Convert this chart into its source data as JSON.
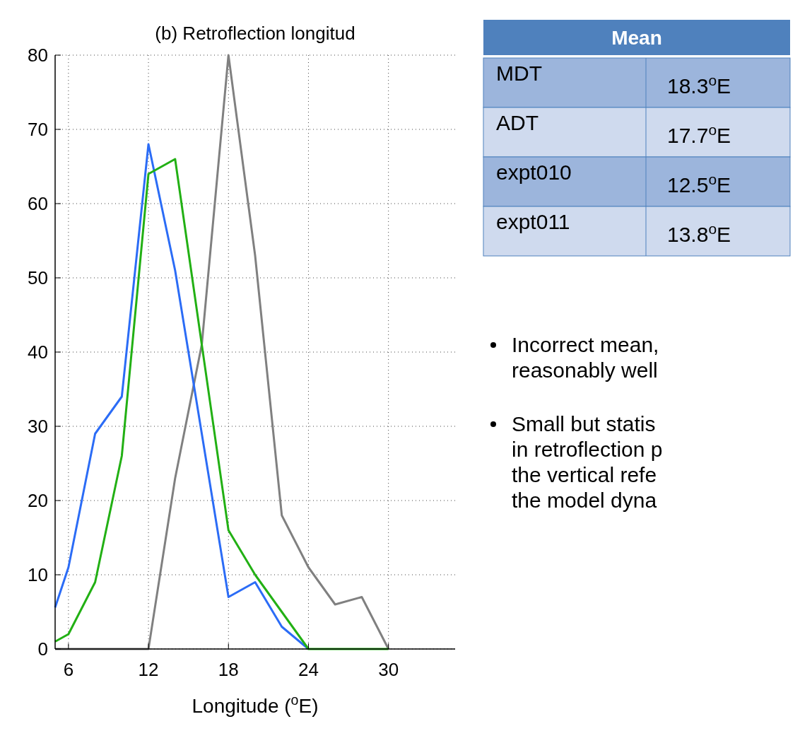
{
  "chart_data": {
    "type": "line",
    "title": "(b) Retroflection longitud",
    "xlabel": "Longitude ($^{o}$E)",
    "xlim": [
      5,
      35
    ],
    "xticks": [
      6,
      12,
      18,
      24,
      30
    ],
    "ylim": [
      0,
      80
    ],
    "yticks": [
      0,
      10,
      20,
      30,
      40,
      50,
      60,
      70,
      80
    ],
    "grid": true,
    "series": [
      {
        "color": "#808080",
        "x": [
          5,
          12,
          14,
          16,
          18,
          20,
          22,
          24,
          26,
          28,
          30
        ],
        "values": [
          0,
          0,
          23,
          41,
          80,
          53,
          18,
          11,
          6,
          7,
          0
        ]
      },
      {
        "color": "#2b6cf6",
        "x": [
          5,
          6,
          8,
          10,
          12,
          14,
          18,
          20,
          22,
          24
        ],
        "values": [
          5.6,
          11,
          29,
          34,
          68,
          51,
          7,
          9,
          3,
          0
        ]
      },
      {
        "color": "#22b014",
        "x": [
          5,
          6,
          8,
          10,
          12,
          14,
          18,
          20,
          24,
          30
        ],
        "values": [
          1,
          2,
          9,
          26,
          64,
          66,
          16,
          10,
          0,
          0
        ]
      }
    ],
    "annotations": [
      "Mean",
      "MDT",
      "18.3$^{o}$E",
      "ADT",
      "17.7$^{o}$E",
      "expt010",
      "12.5$^{o}$E",
      "expt011",
      "13.8$^{o}$E",
      "Incorrect mean,\nreasonably well",
      "Small but statis\nin retroflection p\nthe vertical refe\nthe model dyna"
    ]
  }
}
